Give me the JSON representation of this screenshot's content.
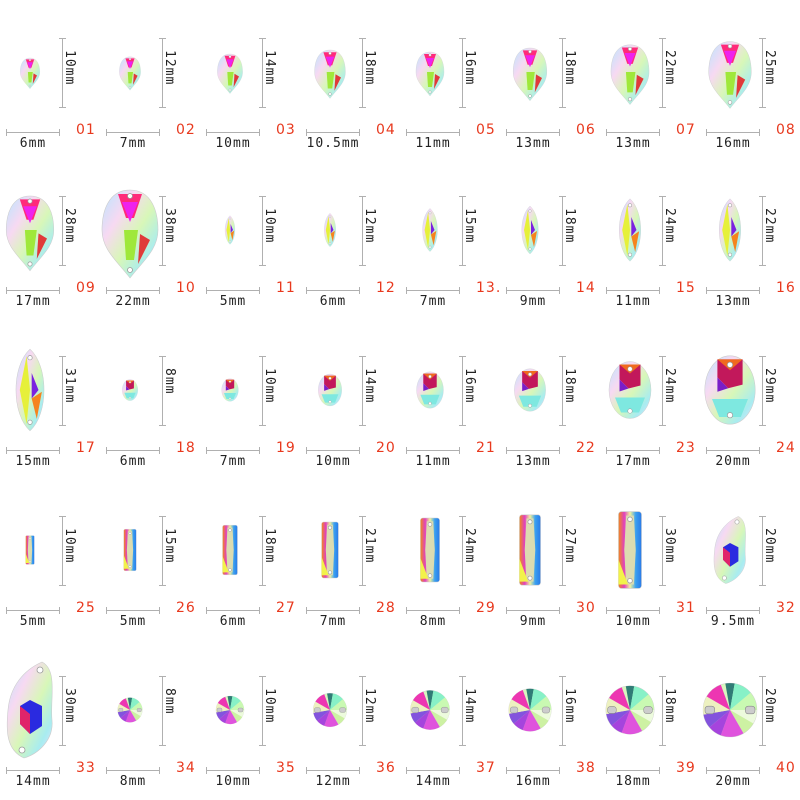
{
  "colors": {
    "number": "#e8391e",
    "label": "#222222",
    "guide": "#b0b0b0"
  },
  "items": [
    {
      "no": "01",
      "width": "6mm",
      "height": "10mm",
      "shape": "drop",
      "scale": 0.35
    },
    {
      "no": "02",
      "width": "7mm",
      "height": "12mm",
      "shape": "drop",
      "scale": 0.38
    },
    {
      "no": "03",
      "width": "10mm",
      "height": "14mm",
      "shape": "drop",
      "scale": 0.45
    },
    {
      "no": "04",
      "width": "10.5mm",
      "height": "18mm",
      "shape": "drop",
      "scale": 0.55
    },
    {
      "no": "05",
      "width": "11mm",
      "height": "16mm",
      "shape": "drop",
      "scale": 0.5
    },
    {
      "no": "06",
      "width": "13mm",
      "height": "18mm",
      "shape": "drop",
      "scale": 0.6
    },
    {
      "no": "07",
      "width": "13mm",
      "height": "22mm",
      "shape": "drop",
      "scale": 0.68
    },
    {
      "no": "08",
      "width": "16mm",
      "height": "25mm",
      "shape": "drop",
      "scale": 0.76
    },
    {
      "no": "09",
      "width": "17mm",
      "height": "28mm",
      "shape": "drop",
      "scale": 0.85
    },
    {
      "no": "10",
      "width": "22mm",
      "height": "38mm",
      "shape": "drop",
      "scale": 1.0
    },
    {
      "no": "11",
      "width": "5mm",
      "height": "10mm",
      "shape": "navette",
      "scale": 0.3
    },
    {
      "no": "12",
      "width": "6mm",
      "height": "12mm",
      "shape": "navette",
      "scale": 0.35
    },
    {
      "no": "13.",
      "width": "7mm",
      "height": "15mm",
      "shape": "navette",
      "scale": 0.45
    },
    {
      "no": "14",
      "width": "9mm",
      "height": "18mm",
      "shape": "navette",
      "scale": 0.5
    },
    {
      "no": "15",
      "width": "11mm",
      "height": "24mm",
      "shape": "navette",
      "scale": 0.65
    },
    {
      "no": "16",
      "width": "13mm",
      "height": "22mm",
      "shape": "navette",
      "scale": 0.65
    },
    {
      "no": "17",
      "width": "15mm",
      "height": "31mm",
      "shape": "navette",
      "scale": 0.85
    },
    {
      "no": "18",
      "width": "6mm",
      "height": "8mm",
      "shape": "oval",
      "scale": 0.28
    },
    {
      "no": "19",
      "width": "7mm",
      "height": "10mm",
      "shape": "oval",
      "scale": 0.3
    },
    {
      "no": "20",
      "width": "10mm",
      "height": "14mm",
      "shape": "oval",
      "scale": 0.42
    },
    {
      "no": "21",
      "width": "11mm",
      "height": "16mm",
      "shape": "oval",
      "scale": 0.48
    },
    {
      "no": "22",
      "width": "13mm",
      "height": "18mm",
      "shape": "oval",
      "scale": 0.56
    },
    {
      "no": "23",
      "width": "17mm",
      "height": "24mm",
      "shape": "oval",
      "scale": 0.75
    },
    {
      "no": "24",
      "width": "20mm",
      "height": "29mm",
      "shape": "oval",
      "scale": 0.9
    },
    {
      "no": "25",
      "width": "5mm",
      "height": "10mm",
      "shape": "rect",
      "scale": 0.36
    },
    {
      "no": "26",
      "width": "5mm",
      "height": "15mm",
      "shape": "rect",
      "scale": 0.52
    },
    {
      "no": "27",
      "width": "6mm",
      "height": "18mm",
      "shape": "rect",
      "scale": 0.62
    },
    {
      "no": "28",
      "width": "7mm",
      "height": "21mm",
      "shape": "rect",
      "scale": 0.7
    },
    {
      "no": "29",
      "width": "8mm",
      "height": "24mm",
      "shape": "rect",
      "scale": 0.8
    },
    {
      "no": "30",
      "width": "9mm",
      "height": "27mm",
      "shape": "rect",
      "scale": 0.88
    },
    {
      "no": "31",
      "width": "10mm",
      "height": "30mm",
      "shape": "rect",
      "scale": 0.96
    },
    {
      "no": "32",
      "width": "9.5mm",
      "height": "20mm",
      "shape": "leaf",
      "scale": 0.7
    },
    {
      "no": "33",
      "width": "14mm",
      "height": "30mm",
      "shape": "leaf",
      "scale": 1.0
    },
    {
      "no": "34",
      "width": "8mm",
      "height": "8mm",
      "shape": "rivoli",
      "scale": 0.44
    },
    {
      "no": "35",
      "width": "10mm",
      "height": "10mm",
      "shape": "rivoli",
      "scale": 0.5
    },
    {
      "no": "36",
      "width": "12mm",
      "height": "12mm",
      "shape": "rivoli",
      "scale": 0.6
    },
    {
      "no": "37",
      "width": "14mm",
      "height": "14mm",
      "shape": "rivoli",
      "scale": 0.7
    },
    {
      "no": "38",
      "width": "16mm",
      "height": "16mm",
      "shape": "rivoli",
      "scale": 0.76
    },
    {
      "no": "39",
      "width": "18mm",
      "height": "18mm",
      "shape": "rivoli",
      "scale": 0.86
    },
    {
      "no": "40",
      "width": "20mm",
      "height": "20mm",
      "shape": "rivoli",
      "scale": 0.96
    }
  ]
}
